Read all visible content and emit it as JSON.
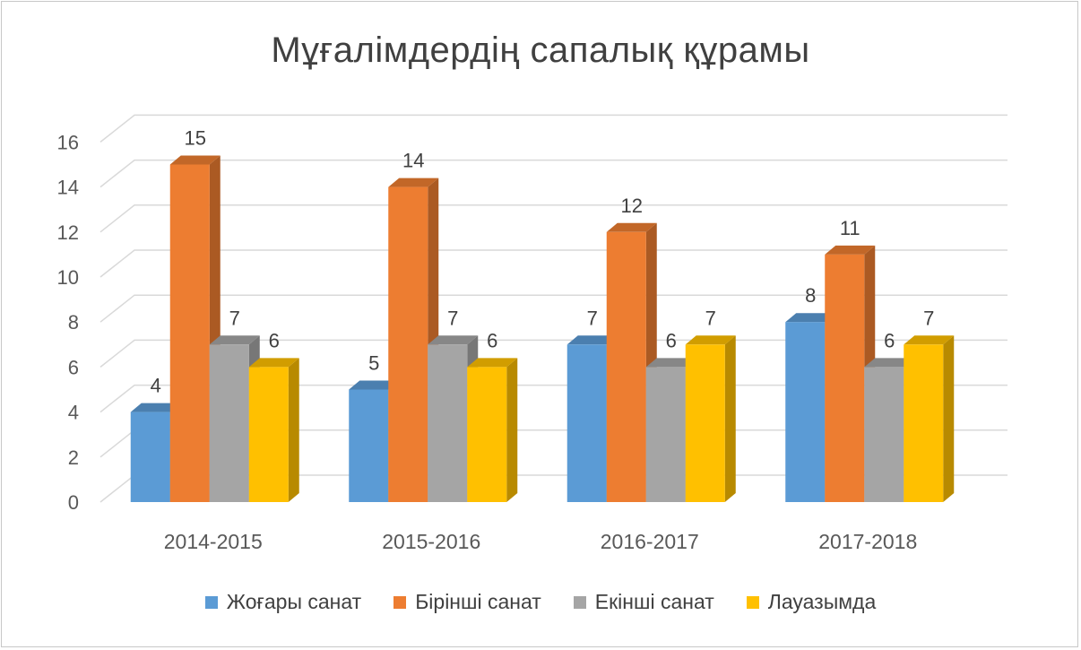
{
  "chart_data": {
    "type": "bar",
    "title": "Мұғалімдердің сапалық құрамы",
    "categories": [
      "2014-2015",
      "2015-2016",
      "2016-2017",
      "2017-2018"
    ],
    "series": [
      {
        "name": "Жоғары санат",
        "color": "#5b9bd5",
        "values": [
          4,
          5,
          7,
          8
        ]
      },
      {
        "name": "Бірінші санат",
        "color": "#ed7d31",
        "values": [
          15,
          14,
          12,
          11
        ]
      },
      {
        "name": "Екінші санат",
        "color": "#a5a5a5",
        "values": [
          7,
          7,
          6,
          6
        ]
      },
      {
        "name": "Лауазымда",
        "color": "#ffc000",
        "values": [
          6,
          6,
          7,
          7
        ]
      }
    ],
    "ylim": [
      0,
      16
    ],
    "yticks": [
      "0",
      "2",
      "4",
      "6",
      "8",
      "10",
      "12",
      "14",
      "16"
    ],
    "grid": true,
    "legend_position": "bottom",
    "style": "3d-clustered-column"
  }
}
